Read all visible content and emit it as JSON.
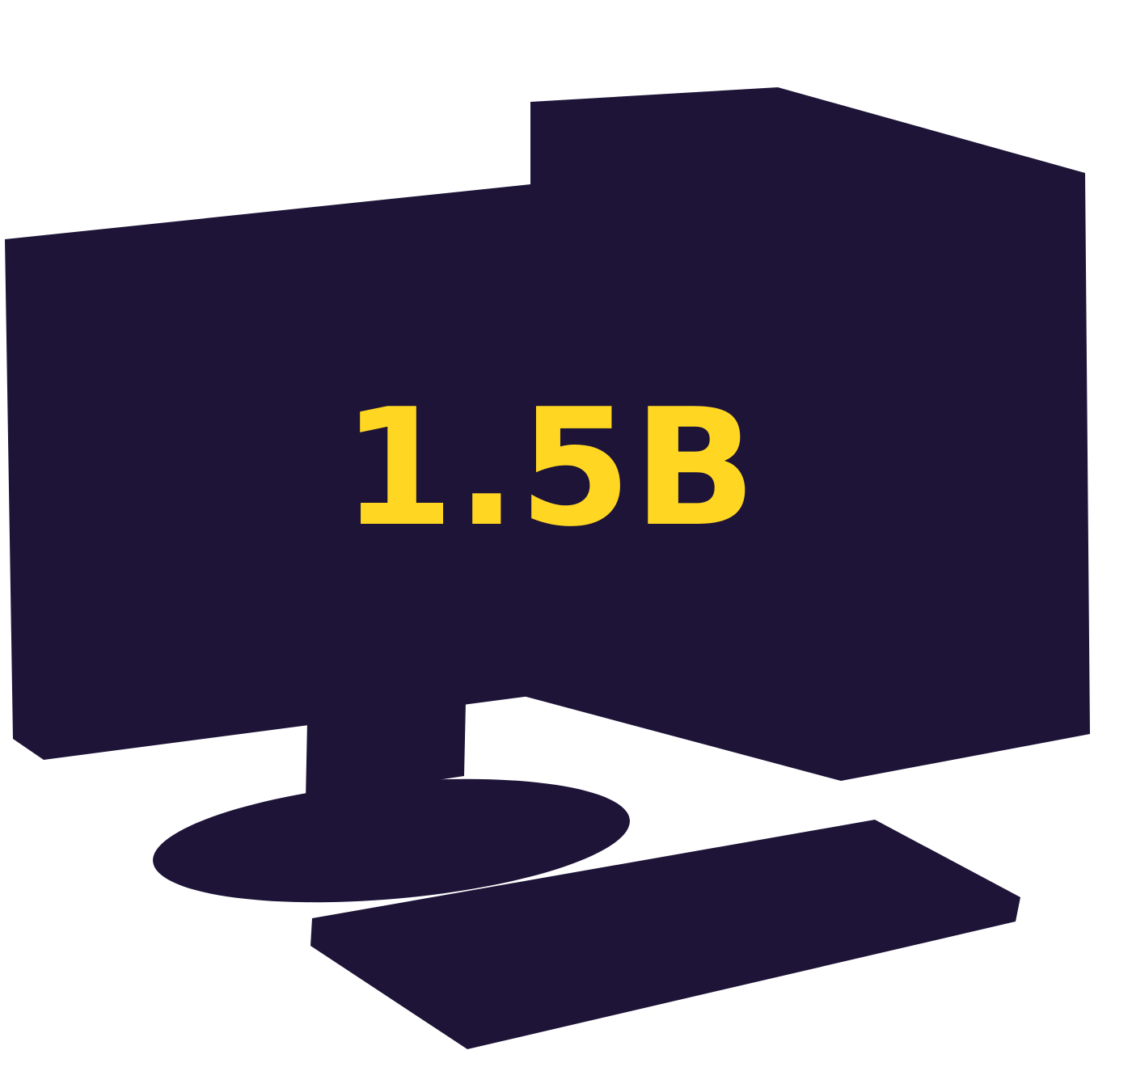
{
  "stat": {
    "value": "1.5B"
  },
  "illustration": {
    "icon": "desktop-computer-icon",
    "parts": [
      "monitor-icon",
      "tower-case-icon",
      "monitor-stand-icon",
      "keyboard-icon"
    ]
  },
  "colors": {
    "background": "#ffffff",
    "silhouette": "#1e1438",
    "accent": "#ffd722"
  }
}
